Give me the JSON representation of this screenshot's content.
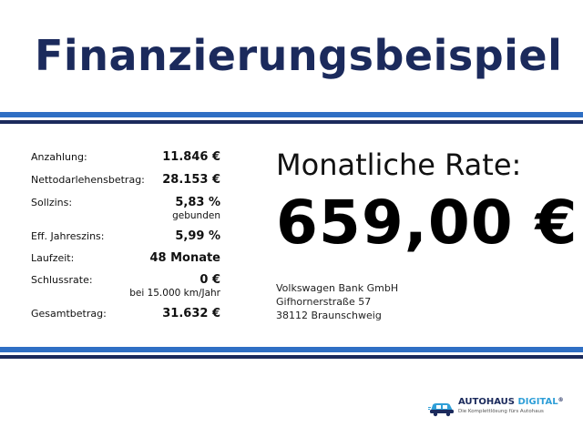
{
  "title": "Finanzierungsbeispiel",
  "details": [
    {
      "label": "Anzahlung:",
      "value": "11.846 €",
      "sub": ""
    },
    {
      "label": "Nettodarlehensbetrag:",
      "value": "28.153 €",
      "sub": ""
    },
    {
      "label": "Sollzins:",
      "value": "5,83 %",
      "sub": "gebunden"
    },
    {
      "label": "Eff. Jahreszins:",
      "value": "5,99 %",
      "sub": ""
    },
    {
      "label": "Laufzeit:",
      "value": "48 Monate",
      "sub": ""
    },
    {
      "label": "Schlussrate:",
      "value": "0 €",
      "sub": "bei 15.000 km/Jahr"
    },
    {
      "label": "Gesamtbetrag:",
      "value": "31.632 €",
      "sub": ""
    }
  ],
  "rate": {
    "label": "Monatliche Rate:",
    "value": "659,00 €"
  },
  "bank": {
    "name": "Volkswagen Bank GmbH",
    "street": "Gifhornerstraße 57",
    "city": "38112 Braunschweig"
  },
  "logo": {
    "brand_part1": "AUTOHAUS",
    "brand_part2": "DIGITAL",
    "registered": "®",
    "tagline": "Die Komplettlösung fürs Autohaus",
    "icon": "car-icon"
  },
  "colors": {
    "title": "#1b2a5c",
    "band_blue": "#2f6fc4",
    "band_navy": "#1b2a5c",
    "logo_accent": "#2f9fd8"
  }
}
